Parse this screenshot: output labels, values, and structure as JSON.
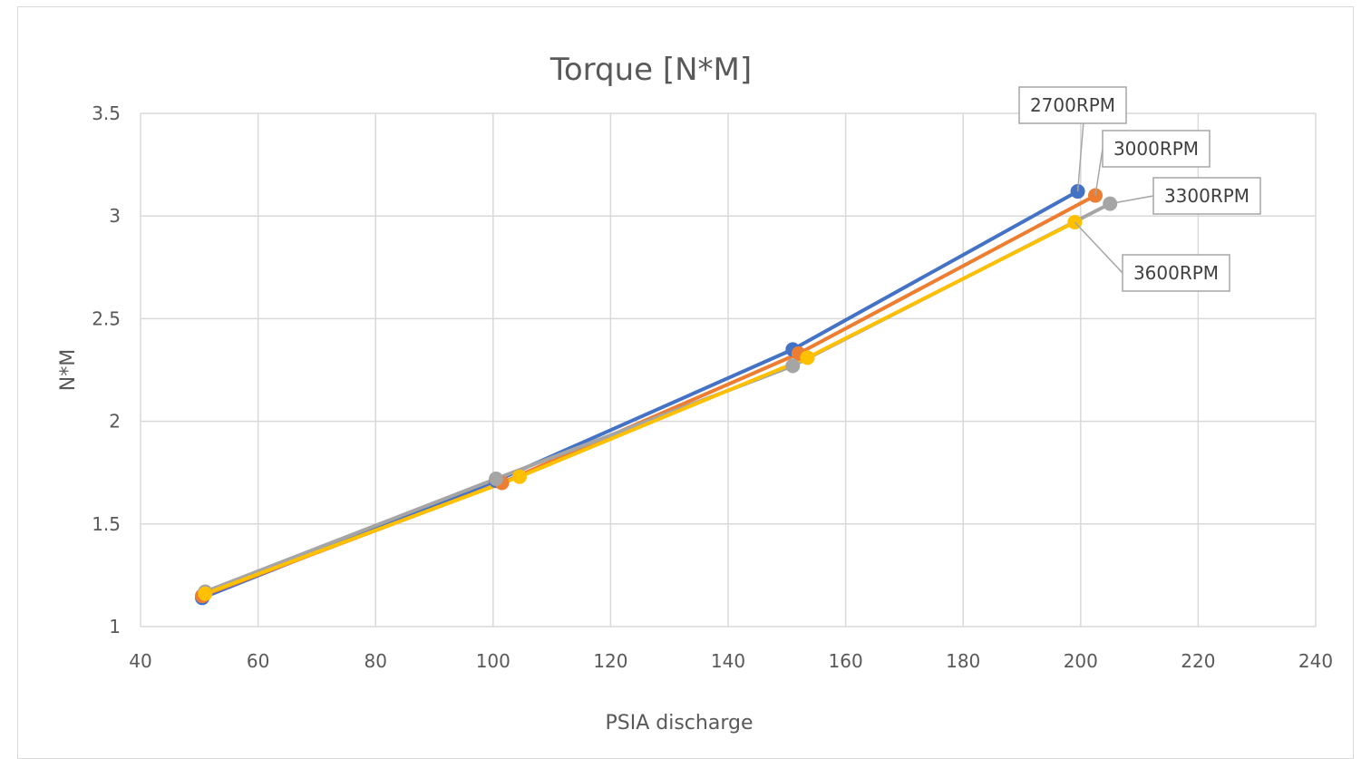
{
  "chart_data": {
    "type": "line",
    "title": "Torque [N*M]",
    "xlabel": "PSIA discharge",
    "ylabel": "N*M",
    "xlim": [
      40,
      240
    ],
    "ylim": [
      1,
      3.5
    ],
    "x_ticks": [
      "40",
      "60",
      "80",
      "100",
      "120",
      "140",
      "160",
      "180",
      "200",
      "220",
      "240"
    ],
    "y_ticks": [
      "1",
      "1.5",
      "2",
      "2.5",
      "3",
      "3.5"
    ],
    "grid": true,
    "legend": "none",
    "series": [
      {
        "name": "2700RPM",
        "color": "#4472C4",
        "x": [
          50.5,
          100.5,
          151,
          199.5
        ],
        "y": [
          1.14,
          1.71,
          2.35,
          3.12
        ]
      },
      {
        "name": "3000RPM",
        "color": "#ED7D31",
        "x": [
          50.5,
          101.5,
          152,
          202.5
        ],
        "y": [
          1.15,
          1.7,
          2.33,
          3.1
        ]
      },
      {
        "name": "3300RPM",
        "color": "#A5A5A5",
        "x": [
          51,
          100.5,
          151,
          205
        ],
        "y": [
          1.17,
          1.72,
          2.27,
          3.06
        ]
      },
      {
        "name": "3600RPM",
        "color": "#FFC000",
        "x": [
          51,
          104.5,
          153.5,
          199
        ],
        "y": [
          1.16,
          1.73,
          2.31,
          2.97
        ]
      }
    ]
  }
}
